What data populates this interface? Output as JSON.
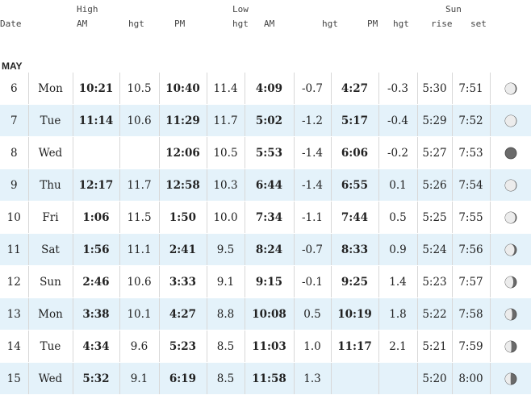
{
  "header": {
    "date": "Date",
    "high": "High",
    "high_am": "AM",
    "high_hgt1": "hgt",
    "high_pm": "PM",
    "low": "Low",
    "low_hgt0": "hgt",
    "low_am": "AM",
    "low_hgt1": "hgt",
    "low_pm": "PM",
    "low_hgt2": "hgt",
    "sun": "Sun",
    "sunrise": "rise",
    "sunset": "set"
  },
  "month": "MAY",
  "rows": [
    {
      "date": "6",
      "day": "Mon",
      "high_am": "10:21",
      "high_am_hgt": "10.5",
      "high_pm": "10:40",
      "high_pm_hgt": "11.4",
      "low_am": "4:09",
      "low_am_hgt": "-0.7",
      "low_pm": "4:27",
      "low_pm_hgt": "-0.3",
      "sunrise": "5:30",
      "sunset": "7:51",
      "moon": "moon-icon"
    },
    {
      "date": "7",
      "day": "Tue",
      "high_am": "11:14",
      "high_am_hgt": "10.6",
      "high_pm": "11:29",
      "high_pm_hgt": "11.7",
      "low_am": "5:02",
      "low_am_hgt": "-1.2",
      "low_pm": "5:17",
      "low_pm_hgt": "-0.4",
      "sunrise": "5:29",
      "sunset": "7:52",
      "moon": "moon-icon"
    },
    {
      "date": "8",
      "day": "Wed",
      "high_am": "",
      "high_am_hgt": "",
      "high_pm": "12:06",
      "high_pm_hgt": "10.5",
      "low_am": "5:53",
      "low_am_hgt": "-1.4",
      "low_pm": "6:06",
      "low_pm_hgt": "-0.2",
      "sunrise": "5:27",
      "sunset": "7:53",
      "moon": "moon-icon"
    },
    {
      "date": "9",
      "day": "Thu",
      "high_am": "12:17",
      "high_am_hgt": "11.7",
      "high_pm": "12:58",
      "high_pm_hgt": "10.3",
      "low_am": "6:44",
      "low_am_hgt": "-1.4",
      "low_pm": "6:55",
      "low_pm_hgt": "0.1",
      "sunrise": "5:26",
      "sunset": "7:54",
      "moon": "moon-icon"
    },
    {
      "date": "10",
      "day": "Fri",
      "high_am": "1:06",
      "high_am_hgt": "11.5",
      "high_pm": "1:50",
      "high_pm_hgt": "10.0",
      "low_am": "7:34",
      "low_am_hgt": "-1.1",
      "low_pm": "7:44",
      "low_pm_hgt": "0.5",
      "sunrise": "5:25",
      "sunset": "7:55",
      "moon": "moon-icon"
    },
    {
      "date": "11",
      "day": "Sat",
      "high_am": "1:56",
      "high_am_hgt": "11.1",
      "high_pm": "2:41",
      "high_pm_hgt": "9.5",
      "low_am": "8:24",
      "low_am_hgt": "-0.7",
      "low_pm": "8:33",
      "low_pm_hgt": "0.9",
      "sunrise": "5:24",
      "sunset": "7:56",
      "moon": "moon-icon"
    },
    {
      "date": "12",
      "day": "Sun",
      "high_am": "2:46",
      "high_am_hgt": "10.6",
      "high_pm": "3:33",
      "high_pm_hgt": "9.1",
      "low_am": "9:15",
      "low_am_hgt": "-0.1",
      "low_pm": "9:25",
      "low_pm_hgt": "1.4",
      "sunrise": "5:23",
      "sunset": "7:57",
      "moon": "moon-icon"
    },
    {
      "date": "13",
      "day": "Mon",
      "high_am": "3:38",
      "high_am_hgt": "10.1",
      "high_pm": "4:27",
      "high_pm_hgt": "8.8",
      "low_am": "10:08",
      "low_am_hgt": "0.5",
      "low_pm": "10:19",
      "low_pm_hgt": "1.8",
      "sunrise": "5:22",
      "sunset": "7:58",
      "moon": "moon-icon"
    },
    {
      "date": "14",
      "day": "Tue",
      "high_am": "4:34",
      "high_am_hgt": "9.6",
      "high_pm": "5:23",
      "high_pm_hgt": "8.5",
      "low_am": "11:03",
      "low_am_hgt": "1.0",
      "low_pm": "11:17",
      "low_pm_hgt": "2.1",
      "sunrise": "5:21",
      "sunset": "7:59",
      "moon": "moon-icon"
    },
    {
      "date": "15",
      "day": "Wed",
      "high_am": "5:32",
      "high_am_hgt": "9.1",
      "high_pm": "6:19",
      "high_pm_hgt": "8.5",
      "low_am": "11:58",
      "low_am_hgt": "1.3",
      "low_pm": "",
      "low_pm_hgt": "",
      "sunrise": "5:20",
      "sunset": "8:00",
      "moon": "moon-icon"
    }
  ],
  "moon_phases": [
    0.08,
    0.02,
    0.0,
    0.03,
    0.09,
    0.18,
    0.28,
    0.38,
    0.45,
    0.52
  ]
}
